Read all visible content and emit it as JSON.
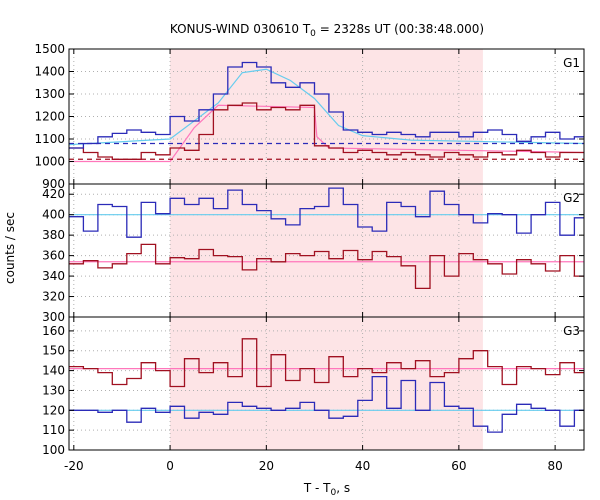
{
  "chart_data": {
    "type": "line",
    "title_main": "KONUS-WIND 030610 T",
    "title_sub": "0",
    "title_rest": " = 2328s UT (00:38:48.000)",
    "xlabel_main": "T - T",
    "xlabel_sub": "0",
    "xlabel_rest": ", s",
    "ylabel": "counts / sec",
    "xlim": [
      -21,
      86
    ],
    "x_ticks": [
      -20,
      0,
      20,
      40,
      60,
      80
    ],
    "shade": [
      0,
      65
    ],
    "colors": {
      "shade": "#fde4e6",
      "blue": "#2b2bb8",
      "red": "#a01020",
      "fit_blue": "#66ccee",
      "fit_pink": "#ff77bb"
    },
    "panels": [
      {
        "label": "G1",
        "ylim": [
          900,
          1500
        ],
        "y_ticks": [
          900,
          1000,
          1100,
          1200,
          1300,
          1400,
          1500
        ],
        "blue": {
          "edges": [
            -21,
            -18,
            -15,
            -12,
            -9,
            -6,
            -3,
            0,
            3,
            6,
            9,
            12,
            15,
            18,
            21,
            24,
            27,
            30,
            33,
            36,
            39,
            42,
            45,
            48,
            51,
            54,
            57,
            60,
            63,
            66,
            69,
            72,
            75,
            78,
            81,
            84,
            86
          ],
          "values": [
            1060,
            1080,
            1110,
            1125,
            1140,
            1130,
            1120,
            1200,
            1180,
            1230,
            1300,
            1420,
            1440,
            1420,
            1350,
            1330,
            1350,
            1300,
            1220,
            1140,
            1130,
            1120,
            1130,
            1120,
            1110,
            1130,
            1130,
            1110,
            1130,
            1140,
            1120,
            1090,
            1110,
            1130,
            1100,
            1110
          ]
        },
        "red": {
          "edges": [
            -21,
            -18,
            -15,
            -12,
            -9,
            -6,
            -3,
            0,
            3,
            6,
            9,
            12,
            15,
            18,
            21,
            24,
            27,
            30,
            33,
            36,
            39,
            42,
            45,
            48,
            51,
            54,
            57,
            60,
            63,
            66,
            69,
            72,
            75,
            78,
            81,
            84,
            86
          ],
          "values": [
            1060,
            1040,
            1020,
            1010,
            1010,
            1040,
            1030,
            1060,
            1050,
            1120,
            1230,
            1250,
            1260,
            1230,
            1240,
            1230,
            1250,
            1070,
            1060,
            1040,
            1050,
            1040,
            1030,
            1040,
            1030,
            1020,
            1040,
            1030,
            1020,
            1040,
            1030,
            1050,
            1040,
            1020,
            1040,
            1040
          ]
        },
        "blue_fit": {
          "x": [
            -21,
            0,
            10,
            15,
            20,
            25,
            30,
            35,
            40,
            50,
            86
          ],
          "y": [
            1075,
            1100,
            1260,
            1395,
            1410,
            1360,
            1280,
            1160,
            1115,
            1095,
            1080
          ]
        },
        "pink_fit": {
          "x": [
            -21,
            0,
            5,
            10,
            30,
            30.5,
            33,
            86
          ],
          "y": [
            1000,
            1000,
            1150,
            1250,
            1240,
            1110,
            1060,
            1040
          ]
        },
        "blue_bg": 1080,
        "red_bg": 1010
      },
      {
        "label": "G2",
        "ylim": [
          300,
          430
        ],
        "y_ticks": [
          300,
          320,
          340,
          360,
          380,
          400,
          420
        ],
        "blue": {
          "edges": [
            -21,
            -18,
            -15,
            -12,
            -9,
            -6,
            -3,
            0,
            3,
            6,
            9,
            12,
            15,
            18,
            21,
            24,
            27,
            30,
            33,
            36,
            39,
            42,
            45,
            48,
            51,
            54,
            57,
            60,
            63,
            66,
            69,
            72,
            75,
            78,
            81,
            84,
            86
          ],
          "values": [
            398,
            384,
            410,
            408,
            378,
            412,
            401,
            416,
            410,
            416,
            406,
            424,
            410,
            404,
            396,
            390,
            406,
            408,
            426,
            410,
            388,
            384,
            412,
            408,
            398,
            423,
            410,
            400,
            392,
            401,
            400,
            382,
            400,
            412,
            380,
            397
          ]
        },
        "red": {
          "edges": [
            -21,
            -18,
            -15,
            -12,
            -9,
            -6,
            -3,
            0,
            3,
            6,
            9,
            12,
            15,
            18,
            21,
            24,
            27,
            30,
            33,
            36,
            39,
            42,
            45,
            48,
            51,
            54,
            57,
            60,
            63,
            66,
            69,
            72,
            75,
            78,
            81,
            84,
            86
          ],
          "values": [
            352,
            355,
            348,
            352,
            362,
            371,
            352,
            358,
            357,
            366,
            360,
            359,
            346,
            357,
            354,
            362,
            360,
            364,
            357,
            365,
            356,
            364,
            359,
            350,
            328,
            360,
            340,
            362,
            356,
            352,
            342,
            356,
            352,
            345,
            360,
            340
          ]
        },
        "blue_fit_y": 400,
        "pink_fit_y": 354
      },
      {
        "label": "G3",
        "ylim": [
          100,
          167
        ],
        "y_ticks": [
          100,
          110,
          120,
          130,
          140,
          150,
          160
        ],
        "blue": {
          "edges": [
            -21,
            -18,
            -15,
            -12,
            -9,
            -6,
            -3,
            0,
            3,
            6,
            9,
            12,
            15,
            18,
            21,
            24,
            27,
            30,
            33,
            36,
            39,
            42,
            45,
            48,
            51,
            54,
            57,
            60,
            63,
            66,
            69,
            72,
            75,
            78,
            81,
            84,
            86
          ],
          "values": [
            120,
            120,
            119,
            120,
            114,
            121,
            119,
            122,
            116,
            119,
            118,
            124,
            122,
            121,
            120,
            121,
            124,
            120,
            116,
            117,
            125,
            137,
            121,
            135,
            120,
            134,
            122,
            121,
            112,
            109,
            118,
            123,
            121,
            120,
            112,
            120
          ]
        },
        "red": {
          "edges": [
            -21,
            -18,
            -15,
            -12,
            -9,
            -6,
            -3,
            0,
            3,
            6,
            9,
            12,
            15,
            18,
            21,
            24,
            27,
            30,
            33,
            36,
            39,
            42,
            45,
            48,
            51,
            54,
            57,
            60,
            63,
            66,
            69,
            72,
            75,
            78,
            81,
            84,
            86
          ],
          "values": [
            142,
            141,
            139,
            133,
            136,
            144,
            140,
            132,
            146,
            139,
            144,
            137,
            156,
            132,
            148,
            135,
            141,
            134,
            147,
            137,
            141,
            139,
            144,
            141,
            145,
            137,
            139,
            146,
            150,
            142,
            133,
            142,
            141,
            138,
            144,
            139
          ]
        },
        "blue_fit_y": 120,
        "pink_fit_y": 141
      }
    ]
  }
}
